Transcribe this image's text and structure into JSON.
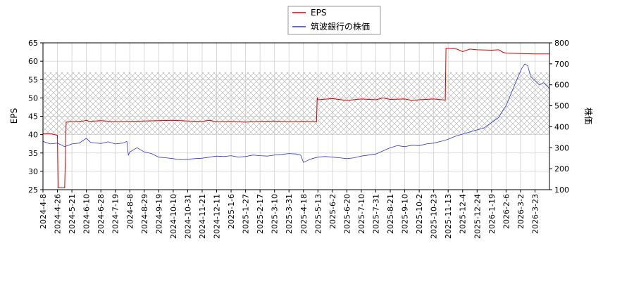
{
  "chart_data": {
    "type": "line",
    "legend": {
      "placement": "top-center",
      "entries": [
        "EPS",
        "筑波銀行の株価"
      ]
    },
    "x_labels": [
      "2024-4-8",
      "2024-4-26",
      "2024-5-21",
      "2024-6-10",
      "2024-6-28",
      "2024-7-19",
      "2024-8-8",
      "2024-8-29",
      "2024-9-19",
      "2024-10-10",
      "2024-10-31",
      "2024-11-21",
      "2024-12-11",
      "2025-1-6",
      "2025-1-27",
      "2025-2-17",
      "2025-3-10",
      "2025-3-31",
      "2025-4-18",
      "2025-5-13",
      "2025-6-2",
      "2025-6-20",
      "2025-7-10",
      "2025-7-31",
      "2025-8-21",
      "2025-9-10",
      "2025-10-2",
      "2025-10-23",
      "2025-11-13",
      "2025-12-4",
      "2025-12-24",
      "2026-1-19",
      "2026-2-6",
      "2026-3-2",
      "2026-3-23"
    ],
    "y_left": {
      "label": "EPS",
      "range": [
        25,
        65
      ],
      "ticks": [
        25,
        30,
        35,
        40,
        45,
        50,
        55,
        60,
        65
      ]
    },
    "y_right": {
      "label": "株価",
      "range": [
        100,
        800
      ],
      "ticks": [
        100,
        200,
        300,
        400,
        500,
        600,
        700,
        800
      ]
    },
    "band": {
      "axis": "left",
      "from": 40,
      "to": 57
    },
    "grid": true,
    "series": [
      {
        "name": "EPS",
        "axis": "left",
        "color": "#dd0000",
        "points": [
          [
            0,
            40.3
          ],
          [
            0.6,
            40.2
          ],
          [
            1.0,
            39.8
          ],
          [
            1.05,
            25.5
          ],
          [
            1.3,
            25.5
          ],
          [
            1.5,
            25.5
          ],
          [
            1.6,
            43.4
          ],
          [
            2.0,
            43.5
          ],
          [
            2.8,
            43.7
          ],
          [
            3.0,
            43.9
          ],
          [
            3.2,
            43.6
          ],
          [
            4.0,
            43.8
          ],
          [
            5.0,
            43.5
          ],
          [
            6.0,
            43.6
          ],
          [
            7.0,
            43.7
          ],
          [
            8.0,
            43.8
          ],
          [
            9.0,
            43.9
          ],
          [
            10.0,
            43.7
          ],
          [
            11.0,
            43.6
          ],
          [
            11.5,
            43.9
          ],
          [
            12.0,
            43.5
          ],
          [
            13.0,
            43.6
          ],
          [
            14.0,
            43.4
          ],
          [
            15.0,
            43.6
          ],
          [
            16.0,
            43.7
          ],
          [
            17.0,
            43.5
          ],
          [
            18.0,
            43.6
          ],
          [
            18.9,
            43.5
          ],
          [
            18.95,
            50.1
          ],
          [
            19.0,
            49.5
          ],
          [
            20.0,
            49.8
          ],
          [
            21.0,
            49.3
          ],
          [
            22.0,
            49.7
          ],
          [
            23.0,
            49.5
          ],
          [
            23.5,
            50.0
          ],
          [
            24.0,
            49.6
          ],
          [
            25.0,
            49.7
          ],
          [
            25.5,
            49.3
          ],
          [
            26.0,
            49.5
          ],
          [
            27.0,
            49.7
          ],
          [
            27.8,
            49.4
          ],
          [
            27.85,
            63.5
          ],
          [
            28.0,
            63.5
          ],
          [
            28.6,
            63.3
          ],
          [
            29.0,
            62.6
          ],
          [
            29.5,
            63.3
          ],
          [
            30.0,
            63.1
          ],
          [
            31.0,
            63.0
          ],
          [
            31.5,
            63.1
          ],
          [
            31.8,
            62.4
          ],
          [
            32.0,
            62.2
          ],
          [
            33.0,
            62.1
          ],
          [
            34.0,
            62.0
          ],
          [
            35.0,
            62.0
          ]
        ]
      },
      {
        "name": "筑波銀行の株価",
        "axis": "right",
        "color": "#3333cc",
        "points": [
          [
            0,
            330
          ],
          [
            0.5,
            318
          ],
          [
            1.0,
            322
          ],
          [
            1.5,
            305
          ],
          [
            2.0,
            318
          ],
          [
            2.5,
            322
          ],
          [
            3.0,
            345
          ],
          [
            3.3,
            325
          ],
          [
            4.0,
            320
          ],
          [
            4.5,
            328
          ],
          [
            5.0,
            318
          ],
          [
            5.5,
            322
          ],
          [
            5.8,
            330
          ],
          [
            5.9,
            265
          ],
          [
            6.0,
            280
          ],
          [
            6.5,
            300
          ],
          [
            7.0,
            280
          ],
          [
            7.5,
            272
          ],
          [
            8.0,
            255
          ],
          [
            8.5,
            252
          ],
          [
            9.0,
            248
          ],
          [
            9.5,
            242
          ],
          [
            10.0,
            245
          ],
          [
            10.5,
            248
          ],
          [
            11.0,
            250
          ],
          [
            11.5,
            255
          ],
          [
            12.0,
            260
          ],
          [
            12.5,
            258
          ],
          [
            13.0,
            262
          ],
          [
            13.5,
            255
          ],
          [
            14.0,
            258
          ],
          [
            14.5,
            265
          ],
          [
            15.0,
            262
          ],
          [
            15.5,
            260
          ],
          [
            16.0,
            265
          ],
          [
            16.5,
            268
          ],
          [
            17.0,
            272
          ],
          [
            17.5,
            270
          ],
          [
            17.8,
            265
          ],
          [
            18.0,
            230
          ],
          [
            18.3,
            240
          ],
          [
            18.6,
            248
          ],
          [
            19.0,
            255
          ],
          [
            19.5,
            258
          ],
          [
            20.0,
            255
          ],
          [
            20.5,
            252
          ],
          [
            21.0,
            248
          ],
          [
            21.5,
            252
          ],
          [
            22.0,
            260
          ],
          [
            22.5,
            265
          ],
          [
            23.0,
            270
          ],
          [
            23.5,
            285
          ],
          [
            24.0,
            300
          ],
          [
            24.5,
            310
          ],
          [
            25.0,
            305
          ],
          [
            25.5,
            312
          ],
          [
            26.0,
            310
          ],
          [
            26.5,
            318
          ],
          [
            27.0,
            322
          ],
          [
            27.5,
            330
          ],
          [
            28.0,
            340
          ],
          [
            28.5,
            355
          ],
          [
            29.0,
            365
          ],
          [
            29.5,
            375
          ],
          [
            30.0,
            385
          ],
          [
            30.5,
            395
          ],
          [
            31.0,
            420
          ],
          [
            31.5,
            445
          ],
          [
            31.8,
            480
          ],
          [
            32.0,
            500
          ],
          [
            32.3,
            550
          ],
          [
            32.6,
            600
          ],
          [
            32.9,
            650
          ],
          [
            33.1,
            680
          ],
          [
            33.3,
            700
          ],
          [
            33.5,
            690
          ],
          [
            33.7,
            640
          ],
          [
            34.0,
            620
          ],
          [
            34.3,
            600
          ],
          [
            34.6,
            610
          ],
          [
            34.9,
            590
          ],
          [
            35.0,
            580
          ]
        ]
      }
    ]
  }
}
